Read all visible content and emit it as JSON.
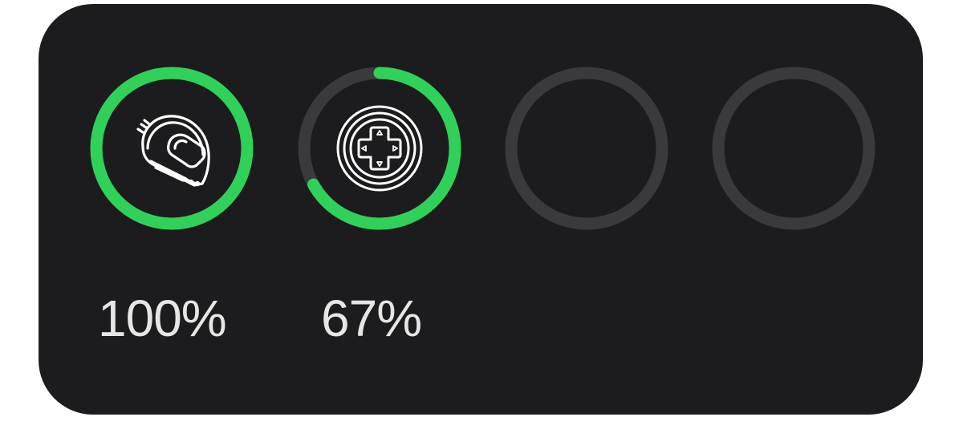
{
  "colors": {
    "widget_bg": "#1c1c1e",
    "track": "#3a3a3c",
    "progress": "#30d158",
    "icon": "#ffffff",
    "label": "#e6e6e6"
  },
  "devices": [
    {
      "icon": "helmet-icon",
      "level": 1.0,
      "percent_label": "100%"
    },
    {
      "icon": "gamepad-icon",
      "level": 0.67,
      "percent_label": "67%"
    },
    {
      "icon": "",
      "level": 0,
      "percent_label": ""
    },
    {
      "icon": "",
      "level": 0,
      "percent_label": ""
    }
  ]
}
